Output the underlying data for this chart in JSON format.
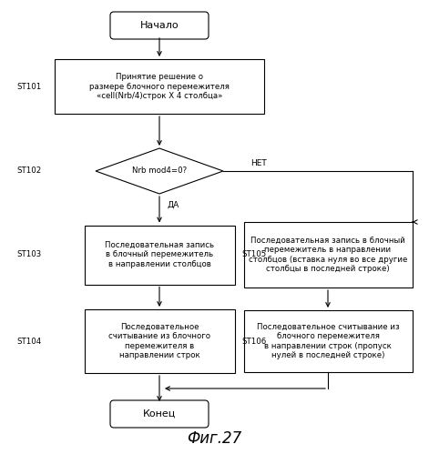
{
  "title": "Фиг.27",
  "background_color": "#ffffff",
  "figsize": [
    4.71,
    4.99
  ],
  "dpi": 100,
  "colors": {
    "box_fill": "#ffffff",
    "box_edge": "#000000",
    "text": "#000000"
  },
  "start_text": "Начало",
  "end_text": "Конец",
  "st101_text": "Принятие решение о\nразмере блочного перемежителя\n«cell(Nrb/4)строк X 4 столбца»",
  "st102_text": "Nrb mod4=0?",
  "st103_text": "Последовательная запись\nв блочный перемежитель\nв направлении столбцов",
  "st104_text": "Последовательное\nсчитывание из блочного\nперемежителя в\nнаправлении строк",
  "st105_text": "Последовательная запись в блочный\nперемежитель в направлении\nстолбцов (вставка нуля во все другие\nстолбцы в последней строке)",
  "st106_text": "Последовательное считывание из\nблочного перемежителя\nв направлении строк (пропуск\nнулей в последней строке)",
  "yes_label": "ДА",
  "no_label": "НЕТ"
}
